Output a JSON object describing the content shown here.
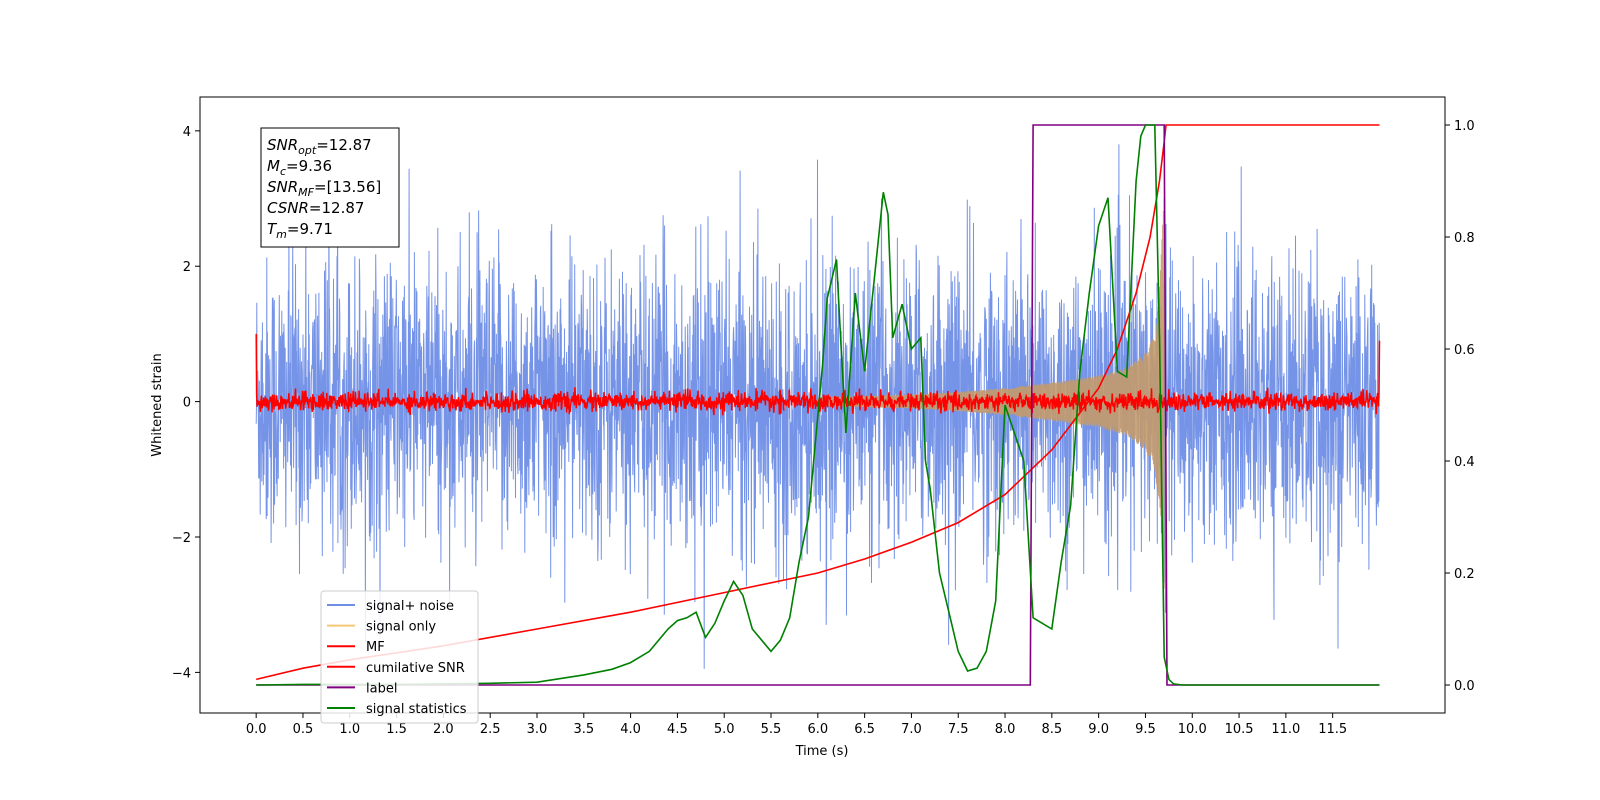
{
  "chart_data": {
    "type": "line",
    "xlabel": "Time (s)",
    "ylabel": "Whitened strain",
    "xlim": [
      -0.6,
      12.7
    ],
    "ylim": [
      -4.6,
      4.5
    ],
    "y2lim": [
      -0.05,
      1.05
    ],
    "x_ticks": [
      "0.0",
      "0.5",
      "1.0",
      "1.5",
      "2.0",
      "2.5",
      "3.0",
      "3.5",
      "4.0",
      "4.5",
      "5.0",
      "5.5",
      "6.0",
      "6.5",
      "7.0",
      "7.5",
      "8.0",
      "8.5",
      "9.0",
      "9.5",
      "10.0",
      "10.5",
      "11.0",
      "11.5"
    ],
    "y_ticks": [
      "4",
      "2",
      "0",
      "−2",
      "−4"
    ],
    "y2_ticks": [
      "1.0",
      "0.8",
      "0.6",
      "0.4",
      "0.2",
      "0.0"
    ],
    "grid": false,
    "legend_position": "lower-left",
    "annotation": {
      "lines": [
        {
          "base": "SNR",
          "sub": "opt",
          "value": "=12.87"
        },
        {
          "base": "M",
          "sub": "c",
          "value": "=9.36"
        },
        {
          "base": "SNR",
          "sub": "MF",
          "value": "=[13.56]"
        },
        {
          "base": "CSNR",
          "sub": "",
          "value": "=12.87"
        },
        {
          "base": "T",
          "sub": "m",
          "value": "=9.71"
        }
      ]
    },
    "series": [
      {
        "name": "signal+ noise",
        "color": "#6f8ee6",
        "axis": "left",
        "kind": "noise",
        "t_start": 0.0,
        "t_end": 12.0,
        "amplitude_std": 1.05
      },
      {
        "name": "signal only",
        "color": "#e8b86d",
        "axis": "left",
        "kind": "chirp",
        "envelope_t": [
          6.0,
          7.0,
          7.5,
          8.0,
          8.5,
          9.0,
          9.3,
          9.5,
          9.6,
          9.65,
          9.7
        ],
        "envelope_amp": [
          0.06,
          0.1,
          0.14,
          0.2,
          0.28,
          0.38,
          0.5,
          0.72,
          1.0,
          1.6,
          3.1
        ]
      },
      {
        "name": "MF",
        "color": "#ff0000",
        "axis": "left",
        "kind": "mf",
        "t_start": 0.0,
        "t_end": 12.0,
        "amplitude_std": 0.07,
        "edge_values": [
          1.0,
          0.9
        ]
      },
      {
        "name": "cumilative SNR",
        "color": "#ff0000",
        "axis": "right",
        "x": [
          0.0,
          0.5,
          1.0,
          2.0,
          3.0,
          4.0,
          5.0,
          6.0,
          6.5,
          7.0,
          7.5,
          8.0,
          8.5,
          9.0,
          9.2,
          9.4,
          9.55,
          9.65,
          9.7,
          9.72,
          12.0
        ],
        "y": [
          0.01,
          0.03,
          0.045,
          0.07,
          0.1,
          0.13,
          0.165,
          0.2,
          0.225,
          0.255,
          0.29,
          0.34,
          0.42,
          0.53,
          0.6,
          0.7,
          0.8,
          0.9,
          0.97,
          1.0,
          1.0
        ]
      },
      {
        "name": "label",
        "color": "#800080",
        "axis": "right",
        "x": [
          0.0,
          8.27,
          8.3,
          9.7,
          9.73,
          12.0
        ],
        "y": [
          0.0,
          0.0,
          1.0,
          1.0,
          0.0,
          0.0
        ]
      },
      {
        "name": "signal statistics",
        "color": "#008000",
        "axis": "right",
        "x": [
          0.0,
          0.5,
          1.0,
          1.5,
          2.0,
          2.5,
          3.0,
          3.5,
          3.8,
          4.0,
          4.2,
          4.4,
          4.5,
          4.6,
          4.7,
          4.8,
          4.9,
          5.0,
          5.1,
          5.2,
          5.3,
          5.4,
          5.5,
          5.6,
          5.7,
          5.8,
          5.9,
          6.0,
          6.05,
          6.1,
          6.2,
          6.25,
          6.3,
          6.4,
          6.5,
          6.6,
          6.7,
          6.75,
          6.8,
          6.9,
          7.0,
          7.1,
          7.15,
          7.2,
          7.3,
          7.4,
          7.5,
          7.6,
          7.7,
          7.8,
          7.9,
          8.0,
          8.1,
          8.2,
          8.3,
          8.4,
          8.5,
          8.6,
          8.7,
          8.8,
          8.9,
          9.0,
          9.1,
          9.2,
          9.3,
          9.4,
          9.45,
          9.5,
          9.6,
          9.65,
          9.7,
          9.75,
          9.8,
          9.9,
          10.0,
          12.0
        ],
        "y": [
          0.0,
          0.001,
          0.001,
          0.001,
          0.002,
          0.003,
          0.005,
          0.018,
          0.028,
          0.04,
          0.06,
          0.1,
          0.115,
          0.12,
          0.13,
          0.085,
          0.11,
          0.15,
          0.185,
          0.16,
          0.1,
          0.08,
          0.06,
          0.08,
          0.12,
          0.22,
          0.3,
          0.48,
          0.57,
          0.69,
          0.76,
          0.6,
          0.45,
          0.7,
          0.56,
          0.72,
          0.88,
          0.84,
          0.62,
          0.68,
          0.6,
          0.62,
          0.4,
          0.35,
          0.2,
          0.13,
          0.06,
          0.025,
          0.03,
          0.06,
          0.15,
          0.5,
          0.45,
          0.4,
          0.12,
          0.11,
          0.1,
          0.22,
          0.32,
          0.56,
          0.7,
          0.82,
          0.87,
          0.56,
          0.55,
          0.9,
          0.98,
          1.0,
          1.0,
          0.62,
          0.05,
          0.01,
          0.002,
          0.0,
          0.0,
          0.0
        ]
      }
    ]
  }
}
